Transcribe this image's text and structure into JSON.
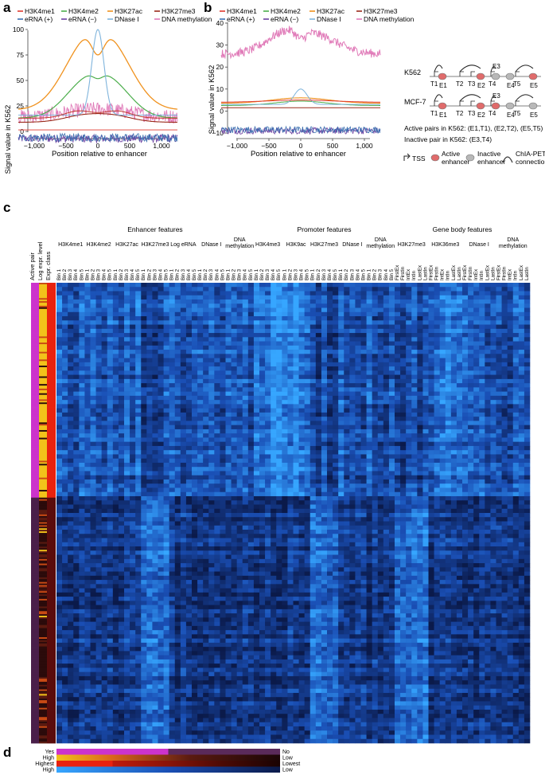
{
  "panel_letters": {
    "a": "a",
    "b": "b",
    "c": "c",
    "d": "d"
  },
  "panel_a": {
    "legend": [
      {
        "label": "H3K4me1",
        "color": "#e03a2f"
      },
      {
        "label": "H3K4me2",
        "color": "#4cae4c"
      },
      {
        "label": "H3K27ac",
        "color": "#f0921e"
      },
      {
        "label": "H3K27me3",
        "color": "#9b2a1a"
      },
      {
        "label": "eRNA (+)",
        "color": "#3b6fb0"
      },
      {
        "label": "eRNA (−)",
        "color": "#6b3fa0"
      },
      {
        "label": "DNase I",
        "color": "#7fb4dc"
      },
      {
        "label": "DNA methylation",
        "color": "#e07ab8"
      }
    ],
    "ylabel": "Signal value in K562",
    "xlabel": "Position relative to enhancer",
    "yticks": [
      "0",
      "25",
      "50",
      "75",
      "100"
    ],
    "xticks": [
      "−1,000",
      "−500",
      "0",
      "500",
      "1,000"
    ]
  },
  "panel_b": {
    "legend": [
      {
        "label": "H3K4me1",
        "color": "#e03a2f"
      },
      {
        "label": "H3K4me2",
        "color": "#4cae4c"
      },
      {
        "label": "H3K27ac",
        "color": "#f0921e"
      },
      {
        "label": "H3K27me3",
        "color": "#9b2a1a"
      },
      {
        "label": "eRNA (+)",
        "color": "#3b6fb0"
      },
      {
        "label": "eRNA (−)",
        "color": "#6b3fa0"
      },
      {
        "label": "DNase I",
        "color": "#7fb4dc"
      },
      {
        "label": "DNA methylation",
        "color": "#e07ab8"
      }
    ],
    "ylabel": "Signal value in K562",
    "xlabel": "Position relative to enhancer",
    "yticks": [
      "−10",
      "0",
      "10",
      "20",
      "30",
      "40"
    ],
    "xticks": [
      "−1,000",
      "−500",
      "0",
      "500",
      "1,000"
    ]
  },
  "schematic": {
    "row1": "K562",
    "row2": "MCF-7",
    "t_labels": [
      "T1",
      "T2",
      "T3",
      "T4",
      "T5"
    ],
    "e_labels": [
      "E1",
      "E2",
      "E3",
      "E4",
      "E5"
    ],
    "active_pairs": "Active pairs in K562: (E1,T1), (E2,T2), (E5,T5)",
    "inactive_pair": "Inactive pair in K562: (E3,T4)",
    "legend_tss": "TSS",
    "legend_active": "Active enhancer",
    "legend_inactive": "Inactive enhancer",
    "legend_chia": "ChIA-PET connection"
  },
  "panel_c": {
    "row_annotations": [
      "Active pair",
      "Log expr. level",
      "Expr. class"
    ],
    "groups": [
      {
        "title": "Enhancer features"
      },
      {
        "title": "Promoter features"
      },
      {
        "title": "Gene body features"
      }
    ],
    "features": [
      {
        "name": "H3K4me1",
        "bins": [
          "Bin 1",
          "Bin 2",
          "Bin 3",
          "Bin 4",
          "Bin 5"
        ]
      },
      {
        "name": "H3K4me2",
        "bins": [
          "Bin 1",
          "Bin 2",
          "Bin 3",
          "Bin 4",
          "Bin 5"
        ]
      },
      {
        "name": "H3K27ac",
        "bins": [
          "Bin 1",
          "Bin 2",
          "Bin 3",
          "Bin 4",
          "Bin 5"
        ]
      },
      {
        "name": "H3K27me3",
        "bins": [
          "Bin 1",
          "Bin 2",
          "Bin 3",
          "Bin 4",
          "Bin 5"
        ]
      },
      {
        "name": "Log eRNA",
        "bins": [
          "Bin 1",
          "Bin 2",
          "Bin 3",
          "Bin 4",
          "Bin 5"
        ]
      },
      {
        "name": "DNase I",
        "bins": [
          "Bin 1",
          "Bin 2",
          "Bin 3",
          "Bin 4",
          "Bin 5"
        ]
      },
      {
        "name": "DNA methylation",
        "bins": [
          "Bin 1",
          "Bin 2",
          "Bin 3",
          "Bin 4",
          "Bin 5"
        ]
      },
      {
        "name": "H3K4me3",
        "bins": [
          "Bin 1",
          "Bin 2",
          "Bin 3",
          "Bin 4",
          "Bin 5"
        ]
      },
      {
        "name": "H3K9ac",
        "bins": [
          "Bin 1",
          "Bin 2",
          "Bin 3",
          "Bin 4",
          "Bin 5"
        ]
      },
      {
        "name": "H3K27me3",
        "bins": [
          "Bin 1",
          "Bin 2",
          "Bin 3",
          "Bin 4",
          "Bin 5"
        ]
      },
      {
        "name": "DNase I",
        "bins": [
          "Bin 1",
          "Bin 2",
          "Bin 3",
          "Bin 4",
          "Bin 5"
        ]
      },
      {
        "name": "DNA methylation",
        "bins": [
          "Bin 1",
          "Bin 2",
          "Bin 3",
          "Bin 4",
          "Bin 5"
        ]
      },
      {
        "name": "H3K27me3",
        "bins": [
          "FirstEx",
          "FirstIn",
          "IntEx",
          "IntIn",
          "LastEx",
          "LastIn"
        ]
      },
      {
        "name": "H3K36me3",
        "bins": [
          "FirstEx",
          "FirstIn",
          "IntEx",
          "IntIn",
          "LastEx",
          "LastIn"
        ]
      },
      {
        "name": "DNase I",
        "bins": [
          "FirstEx",
          "FirstIn",
          "IntEx",
          "IntIn",
          "LastEx",
          "LastIn"
        ]
      },
      {
        "name": "DNA methylation",
        "bins": [
          "FirstEx",
          "FirstIn",
          "IntEx",
          "IntIn",
          "LastEx",
          "LastIn"
        ]
      }
    ]
  },
  "panel_d": {
    "rows": [
      {
        "left": "Yes",
        "right": "No"
      },
      {
        "left": "High",
        "right": "Low"
      },
      {
        "left": "Highest",
        "right": "Lowest"
      },
      {
        "left": "High",
        "right": "Low"
      }
    ]
  },
  "colors": {
    "heat_low": "#0b1a4a",
    "heat_mid": "#1a4fb5",
    "heat_high": "#36a6ff",
    "active_pair": "#cc33cc",
    "inactive_pair": "#4a1f4a"
  }
}
